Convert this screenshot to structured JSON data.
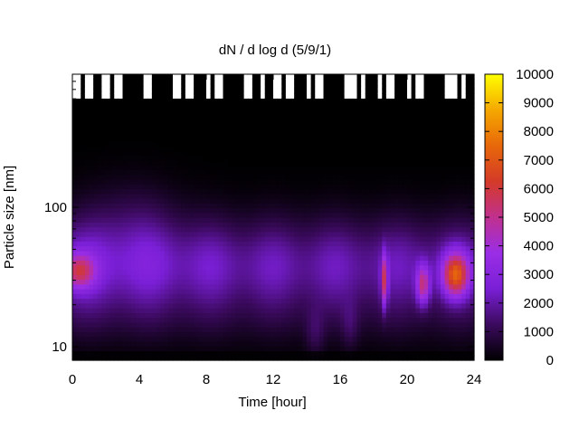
{
  "chart_data": {
    "type": "heatmap",
    "title": "dN / d log d (5/9/1)",
    "xlabel": "Time [hour]",
    "ylabel": "Particle size [nm]",
    "xlim": [
      0,
      24
    ],
    "x_ticks": [
      0,
      4,
      8,
      12,
      16,
      20,
      24
    ],
    "x_tick_labels": [
      "0",
      "4",
      "8",
      "12",
      "16",
      "20",
      "24"
    ],
    "y_scale": "log",
    "ylim": [
      8,
      900
    ],
    "y_ticks": [
      10,
      100
    ],
    "y_tick_labels": [
      "10",
      "100"
    ],
    "colorbar": {
      "min": 0,
      "max": 10000,
      "ticks": [
        0,
        1000,
        2000,
        3000,
        4000,
        5000,
        6000,
        7000,
        8000,
        9000,
        10000
      ],
      "tick_labels": [
        "0",
        "1000",
        "2000",
        "3000",
        "4000",
        "5000",
        "6000",
        "7000",
        "8000",
        "9000",
        "10000"
      ],
      "colormap": [
        "#000000",
        "#3b0a5e",
        "#7a1fd6",
        "#9a2ee6",
        "#c0308e",
        "#d43a28",
        "#e8680a",
        "#f5a800",
        "#ffff00"
      ]
    },
    "features": [
      {
        "time_start": 0,
        "time_end": 1.8,
        "size_nm": 35,
        "peak_value": 6000,
        "description_free": true
      },
      {
        "time_start": 18.5,
        "time_end": 18.8,
        "size_nm": 30,
        "peak_value": 6200
      },
      {
        "time_start": 20.6,
        "time_end": 21.3,
        "size_nm": 28,
        "peak_value": 6300
      },
      {
        "time_start": 21.9,
        "time_end": 23.8,
        "size_nm": 32,
        "peak_value": 8200
      }
    ],
    "no_data_above_nm": 600
  }
}
